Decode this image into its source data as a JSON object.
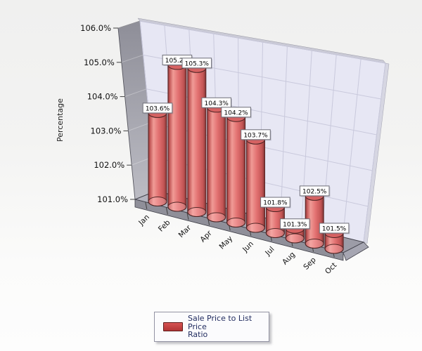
{
  "chart_data": {
    "type": "bar",
    "subtype": "3d-cylinder",
    "categories": [
      "Jan",
      "Feb",
      "Mar",
      "Apr",
      "May",
      "Jun",
      "Jul",
      "Aug",
      "Sep",
      "Oct"
    ],
    "series": [
      {
        "name": "Sale Price to List Price Ratio",
        "values": [
          103.6,
          105.2,
          105.3,
          104.3,
          104.2,
          103.7,
          101.8,
          101.3,
          102.5,
          101.5
        ]
      }
    ],
    "value_labels": [
      "103.6%",
      "105.2%",
      "105.3%",
      "104.3%",
      "104.2%",
      "103.7%",
      "101.8%",
      "101.3%",
      "102.5%",
      "101.5%"
    ],
    "xlabel": "",
    "ylabel": "Percentage",
    "y_tick_labels": [
      "106.0%",
      "105.0%",
      "104.0%",
      "103.0%",
      "102.0%",
      "101.0%"
    ],
    "ylim": [
      101,
      106
    ],
    "grid": true,
    "legend_position": "bottom",
    "bar_color": "#d96262"
  },
  "legend": {
    "label_line1": "Sale Price to List Price",
    "label_line2": "Ratio",
    "swatch_color": "#c13f3f"
  },
  "colors": {
    "back_wall": "#e7e7f4",
    "grid_line": "#c9c9dc",
    "left_wall_top": "#8e8e98",
    "left_wall_bottom": "#bcbcc4",
    "floor": "#a7a7b2",
    "floor_front": "#8f8f99",
    "edge_dark": "#3f3f48",
    "bevel": "#cacad6",
    "cylinder_dark": "#7e3434",
    "cylinder_light": "#f09b96",
    "cylinder_mid": "#e37272",
    "cap_fill": "#d66262",
    "label_box_bg": "#fefefe",
    "label_box_border": "#6f6f78",
    "axis_text": "#111111"
  }
}
